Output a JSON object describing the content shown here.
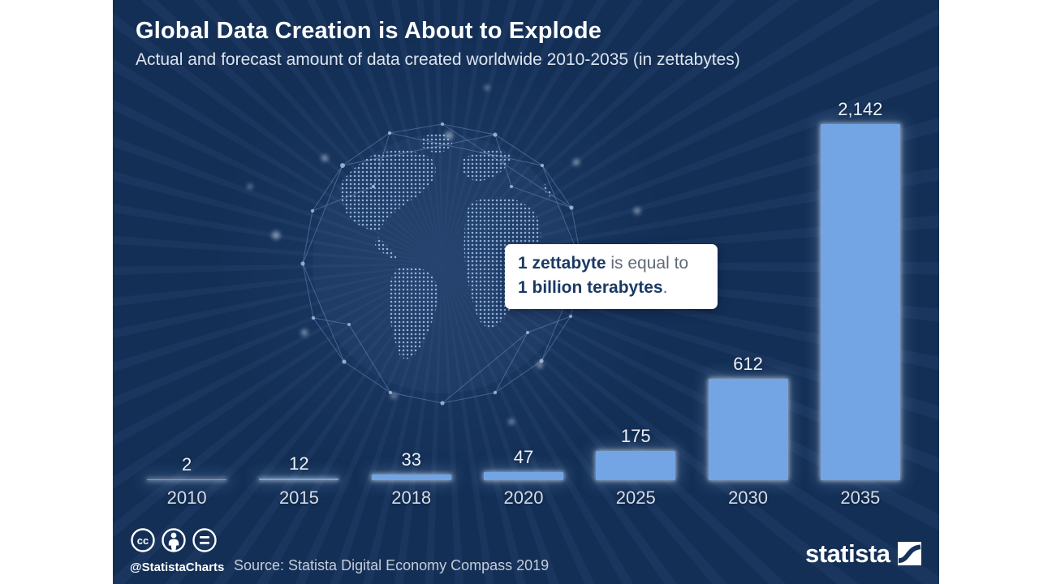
{
  "page": {
    "outer_background": "#ffffff",
    "canvas_background": "#132f56"
  },
  "header": {
    "title": "Global Data Creation is About to Explode",
    "subtitle": "Actual and forecast amount of data created worldwide 2010-2035 (in zettabytes)"
  },
  "chart_data": {
    "type": "bar",
    "title": "Global Data Creation is About to Explode",
    "subtitle": "Actual and forecast amount of data created worldwide 2010-2035 (in zettabytes)",
    "unit": "zettabytes",
    "categories": [
      "2010",
      "2015",
      "2018",
      "2020",
      "2025",
      "2030",
      "2035"
    ],
    "values": [
      2,
      12,
      33,
      47,
      175,
      612,
      2142
    ],
    "value_labels": [
      "2",
      "12",
      "33",
      "47",
      "175",
      "612",
      "2,142"
    ],
    "ylim": [
      0,
      2142
    ],
    "grid": false,
    "legend": "none",
    "orientation": "vertical",
    "bar_color": "#73a4e3"
  },
  "annotation": {
    "bold_1": "1 zettabyte",
    "text_1": " is equal to",
    "bold_2": "1 billion terabytes",
    "text_2": "."
  },
  "footer": {
    "handle": "@StatistaCharts",
    "source": "Source: Statista Digital Economy Compass 2019",
    "brand": "statista",
    "license_icons": [
      "cc",
      "attribution",
      "equal"
    ]
  },
  "colors": {
    "background": "#132f56",
    "bar": "#73a4e3",
    "title": "#ffffff",
    "subtitle": "#dde3ec",
    "value_label": "#eef2f8",
    "year_label": "#d6dce5",
    "annotation_accent": "#1a3a64",
    "annotation_muted": "#5f6a76",
    "source_text": "#c5cdd8"
  }
}
